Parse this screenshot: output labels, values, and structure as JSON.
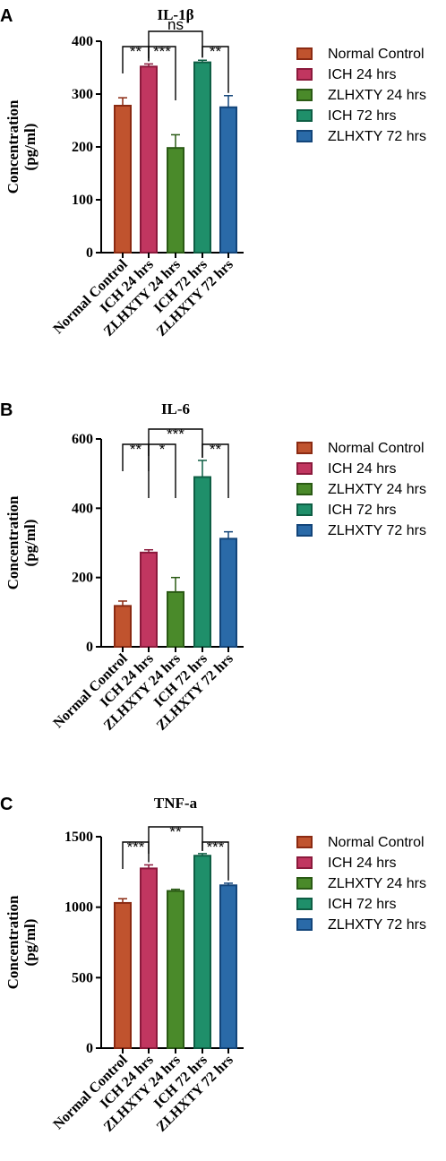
{
  "categories": [
    "Normal Control",
    "ICH 24 hrs",
    "ZLHXTY 24 hrs",
    "ICH 72 hrs",
    "ZLHXTY 72 hrs"
  ],
  "colors": {
    "fill": [
      "#c0532e",
      "#c13660",
      "#4a8a2a",
      "#1f8f6a",
      "#2a6aa8"
    ],
    "edge": [
      "#8b2a12",
      "#8b1a3c",
      "#2a5a14",
      "#0e5e44",
      "#13457a"
    ]
  },
  "chart_data": [
    {
      "panel": "A",
      "type": "bar",
      "title": "IL-1β",
      "ylabel": "Concentration (pg/ml)",
      "ylim": [
        0,
        400
      ],
      "yticks": [
        0,
        100,
        200,
        300,
        400
      ],
      "values": [
        278,
        352,
        198,
        360,
        275
      ],
      "errors": [
        15,
        5,
        25,
        4,
        22
      ],
      "legend_position": "right",
      "significance": [
        {
          "from": 0,
          "to": 1,
          "label": "**"
        },
        {
          "from": 1,
          "to": 2,
          "label": "***"
        },
        {
          "from": 1,
          "to": 3,
          "label": "ns"
        },
        {
          "from": 3,
          "to": 4,
          "label": "**"
        }
      ]
    },
    {
      "panel": "B",
      "type": "bar",
      "title": "IL-6",
      "ylabel": "Concentration (pg/ml)",
      "ylim": [
        0,
        600
      ],
      "yticks": [
        0,
        200,
        400,
        600
      ],
      "values": [
        118,
        272,
        158,
        490,
        312
      ],
      "errors": [
        14,
        8,
        42,
        48,
        20
      ],
      "legend_position": "right",
      "significance": [
        {
          "from": 0,
          "to": 1,
          "label": "**"
        },
        {
          "from": 1,
          "to": 2,
          "label": "*"
        },
        {
          "from": 1,
          "to": 3,
          "label": "***"
        },
        {
          "from": 3,
          "to": 4,
          "label": "**"
        }
      ]
    },
    {
      "panel": "C",
      "type": "bar",
      "title": "TNF-a",
      "ylabel": "Concentration (pg/ml)",
      "ylim": [
        0,
        1500
      ],
      "yticks": [
        0,
        500,
        1000,
        1500
      ],
      "values": [
        1030,
        1275,
        1115,
        1365,
        1155
      ],
      "errors": [
        30,
        25,
        12,
        15,
        15
      ],
      "legend_position": "right",
      "significance": [
        {
          "from": 0,
          "to": 1,
          "label": "***"
        },
        {
          "from": 1,
          "to": 3,
          "label": "**"
        },
        {
          "from": 3,
          "to": 4,
          "label": "***"
        }
      ]
    }
  ]
}
